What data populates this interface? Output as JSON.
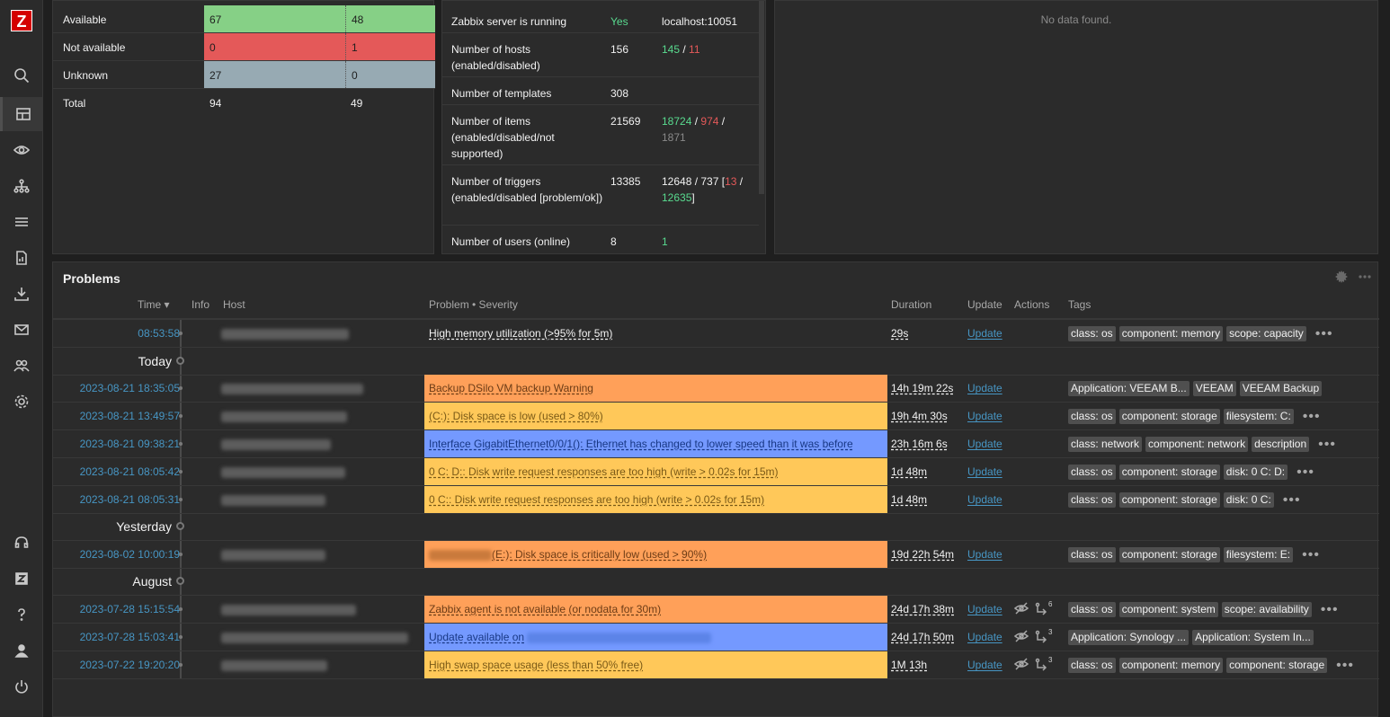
{
  "logo": "Z",
  "sidebar_icons": [
    "search-icon",
    "dashboard-icon",
    "eye-icon",
    "network-icon",
    "list-icon",
    "report-icon",
    "download-icon",
    "mail-icon",
    "users-icon",
    "gear-icon",
    "support-icon",
    "zabbix-share-icon",
    "help-icon",
    "user-icon",
    "power-icon"
  ],
  "host_availability": {
    "rows": [
      {
        "label": "Available",
        "c1": "67",
        "c2": "48",
        "style": "green"
      },
      {
        "label": "Not available",
        "c1": "0",
        "c2": "1",
        "style": "red"
      },
      {
        "label": "Unknown",
        "c1": "27",
        "c2": "0",
        "style": "grey"
      },
      {
        "label": "Total",
        "c1": "94",
        "c2": "49",
        "style": ""
      }
    ]
  },
  "system_info": {
    "server_running": {
      "param": "Zabbix server is running",
      "value": "Yes",
      "details": "localhost:10051"
    },
    "hosts": {
      "param": "Number of hosts (enabled/disabled)",
      "value": "156",
      "d_enabled": "145",
      "sep": " / ",
      "d_disabled": "11"
    },
    "templates": {
      "param": "Number of templates",
      "value": "308"
    },
    "items": {
      "param": "Number of items (enabled/disabled/not supported)",
      "value": "21569",
      "d_enabled": "18724",
      "sep1": " / ",
      "d_disabled": "974",
      "sep2": " /",
      "d_unsupported": "1871"
    },
    "triggers": {
      "param": "Number of triggers (enabled/disabled [problem/ok])",
      "value": "13385",
      "d_main": "12648 / 737 [",
      "d_problem": "13",
      "sep": " / ",
      "d_ok": "12635",
      "close": "]"
    },
    "users": {
      "param": "Number of users (online)",
      "value": "8",
      "d_online": "1"
    }
  },
  "empty_widget": {
    "message": "No data found."
  },
  "problems": {
    "title": "Problems",
    "headers": {
      "time": "Time ▾",
      "info": "Info",
      "host": "Host",
      "problem": "Problem • Severity",
      "duration": "Duration",
      "update": "Update",
      "actions": "Actions",
      "tags": "Tags"
    },
    "update_label": "Update",
    "more": "•••",
    "groups": {
      "today": "Today",
      "yesterday": "Yesterday",
      "august": "August"
    },
    "rows": [
      {
        "time": "08:53:58",
        "problem": "High memory utilization (>95% for 5m)",
        "duration": "29s",
        "tags": [
          "class: os",
          "component: memory",
          "scope: capacity"
        ],
        "more": true
      },
      {
        "time": "2023-08-21 18:35:05",
        "problem": "Backup DSilo VM backup Warning",
        "duration": "14h 19m 22s",
        "tags": [
          "Application: VEEAM B...",
          "VEEAM",
          "VEEAM Backup"
        ],
        "more": false
      },
      {
        "time": "2023-08-21 13:49:57",
        "problem": "(C:): Disk space is low (used > 80%)",
        "duration": "19h 4m 30s",
        "tags": [
          "class: os",
          "component: storage",
          "filesystem: C:"
        ],
        "more": true
      },
      {
        "time": "2023-08-21 09:38:21",
        "problem": "Interface GigabitEthernet0/0/1(): Ethernet has changed to lower speed than it was before",
        "duration": "23h 16m 6s",
        "tags": [
          "class: network",
          "component: network",
          "description"
        ],
        "more": true
      },
      {
        "time": "2023-08-21 08:05:42",
        "problem": "0 C: D:: Disk write request responses are too high (write > 0.02s for 15m)",
        "duration": "1d 48m",
        "tags": [
          "class: os",
          "component: storage",
          "disk: 0 C: D:"
        ],
        "more": true
      },
      {
        "time": "2023-08-21 08:05:31",
        "problem": "0 C:: Disk write request responses are too high (write > 0.02s for 15m)",
        "duration": "1d 48m",
        "tags": [
          "class: os",
          "component: storage",
          "disk: 0 C:"
        ],
        "more": true
      },
      {
        "time": "2023-08-02 10:00:19",
        "problem": "(E:): Disk space is critically low (used > 90%)",
        "duration": "19d 22h 54m",
        "tags": [
          "class: os",
          "component: storage",
          "filesystem: E:"
        ],
        "more": true
      },
      {
        "time": "2023-07-28 15:15:54",
        "problem": "Zabbix agent is not available (or nodata for 30m)",
        "duration": "24d 17h 38m",
        "actions_count": "6",
        "tags": [
          "class: os",
          "component: system",
          "scope: availability"
        ],
        "more": true
      },
      {
        "time": "2023-07-28 15:03:41",
        "problem": "Update available on",
        "duration": "24d 17h 50m",
        "actions_count": "3",
        "tags": [
          "Application: Synology ...",
          "Application: System In..."
        ],
        "more": false
      },
      {
        "time": "2023-07-22 19:20:20",
        "problem": "High swap space usage (less than 50% free)",
        "duration": "1M 13h",
        "actions_count": "3",
        "tags": [
          "class: os",
          "component: memory",
          "component: storage"
        ],
        "more": true
      }
    ]
  }
}
